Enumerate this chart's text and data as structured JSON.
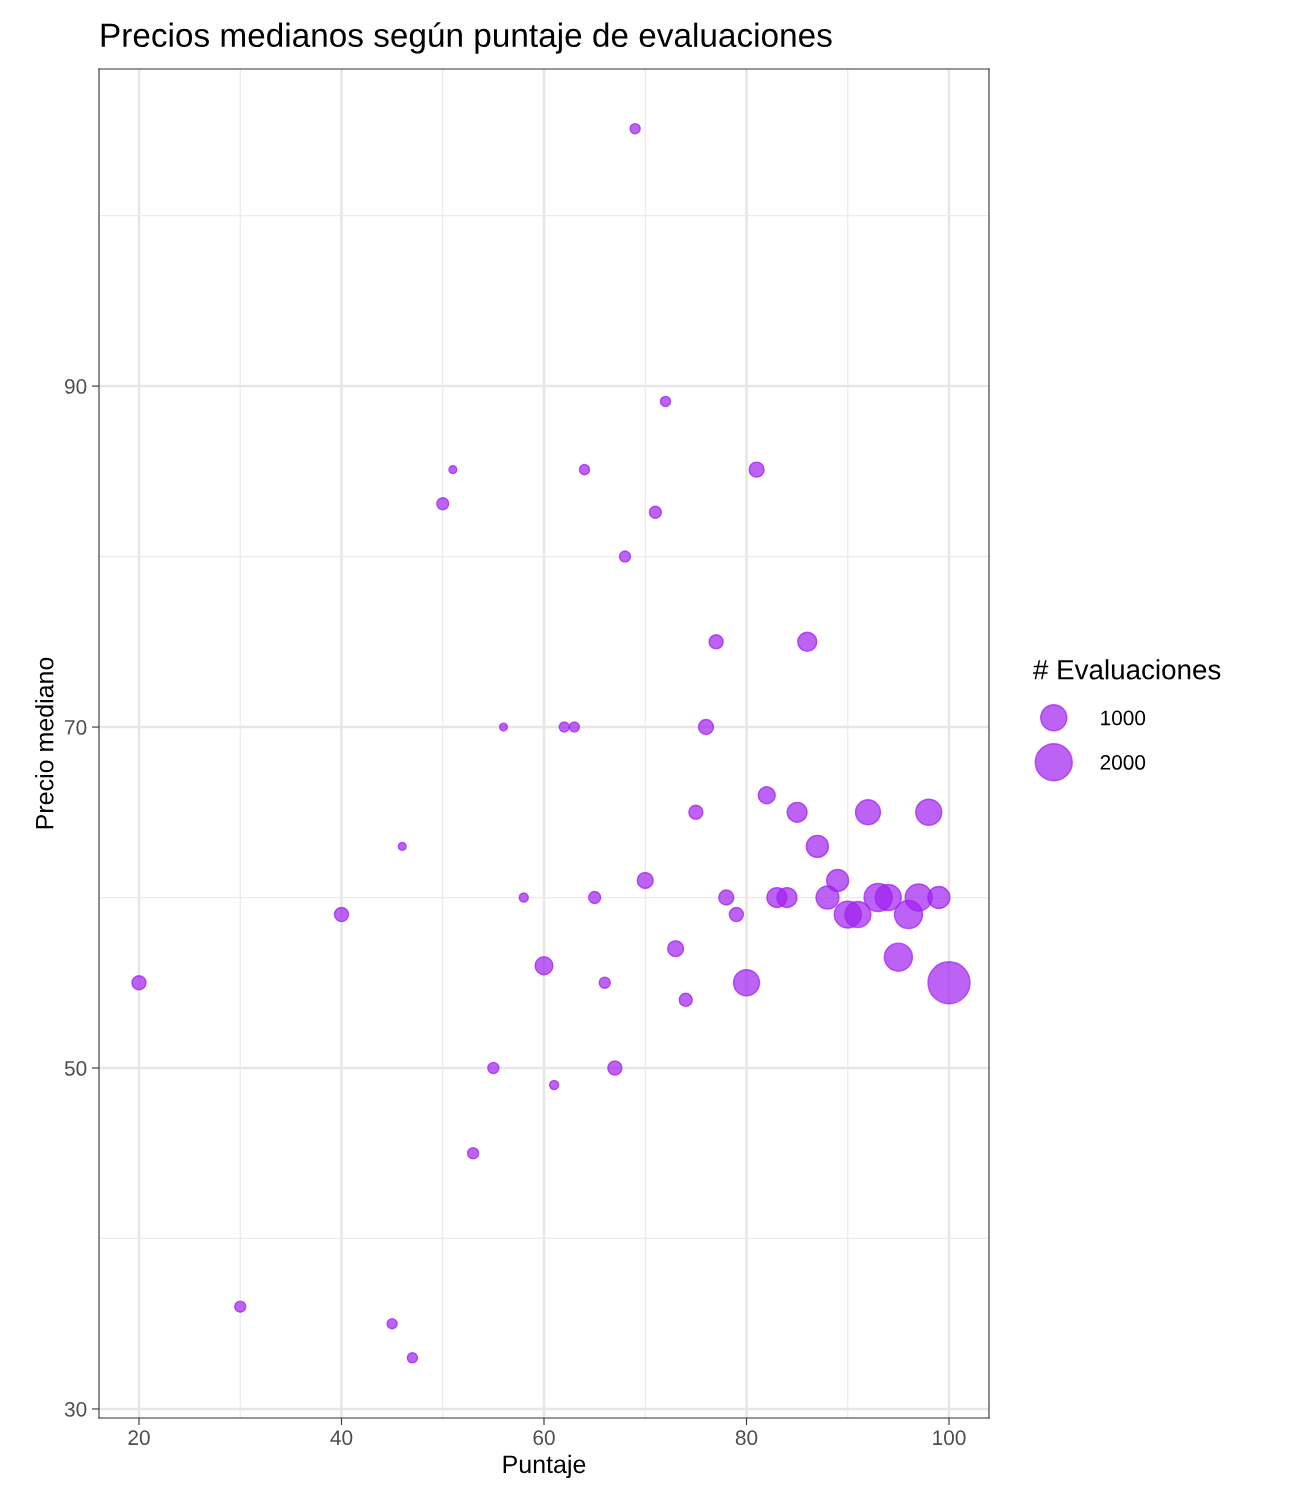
{
  "chart_data": {
    "type": "bubble",
    "title": "Precios medianos según puntaje de evaluaciones",
    "xlabel": "Puntaje",
    "ylabel": "Precio mediano",
    "legend_title": "# Evaluaciones",
    "x": [
      69,
      72,
      51,
      64,
      81,
      50,
      71,
      68,
      77,
      86,
      56,
      62,
      63,
      76,
      82,
      75,
      85,
      92,
      98,
      46,
      87,
      70,
      89,
      58,
      65,
      78,
      83,
      84,
      88,
      93,
      94,
      97,
      99,
      40,
      79,
      90,
      91,
      96,
      73,
      95,
      60,
      20,
      66,
      80,
      100,
      74,
      55,
      67,
      61,
      53,
      30,
      45,
      47
    ],
    "values": [
      105.1,
      89.1,
      85.1,
      85.1,
      85.1,
      83.1,
      82.6,
      80.0,
      75.0,
      75.0,
      70,
      70,
      70,
      70,
      66.0,
      65,
      65,
      65,
      65,
      63.0,
      63,
      61.0,
      61,
      60,
      60,
      60,
      60,
      60,
      60,
      60,
      60,
      60,
      60,
      59,
      59,
      59,
      59,
      59,
      57.0,
      56.5,
      56.0,
      55,
      55,
      55,
      55,
      54.0,
      50,
      50,
      49.0,
      45.0,
      36.0,
      35.0,
      33.0
    ],
    "sizes": [
      150,
      150,
      90,
      150,
      330,
      210,
      210,
      180,
      290,
      530,
      90,
      150,
      150,
      330,
      420,
      290,
      580,
      910,
      990,
      90,
      710,
      370,
      710,
      120,
      210,
      330,
      580,
      580,
      770,
      1150,
      990,
      1060,
      710,
      290,
      290,
      1060,
      990,
      1150,
      370,
      1150,
      470,
      290,
      180,
      990,
      2580,
      250,
      180,
      290,
      120,
      180,
      180,
      150,
      150
    ],
    "size_legend": [
      1000,
      2000
    ],
    "color": "#a020f0",
    "xlim": [
      16.05,
      103.95
    ],
    "ylim": [
      29.47,
      108.6
    ],
    "xticks": [
      20,
      {
        "value": 30,
        "label": null
      },
      40,
      {
        "value": 50,
        "label": null
      },
      60,
      {
        "value": 70,
        "label": null
      },
      80,
      {
        "value": 90,
        "label": null
      },
      100
    ],
    "yticks": [
      30,
      {
        "value": 40,
        "label": null
      },
      50,
      {
        "value": 60,
        "label": null
      },
      70,
      {
        "value": 80,
        "label": null
      },
      90,
      {
        "value": 100,
        "label": null
      }
    ],
    "grid": true,
    "marker": "circle"
  }
}
